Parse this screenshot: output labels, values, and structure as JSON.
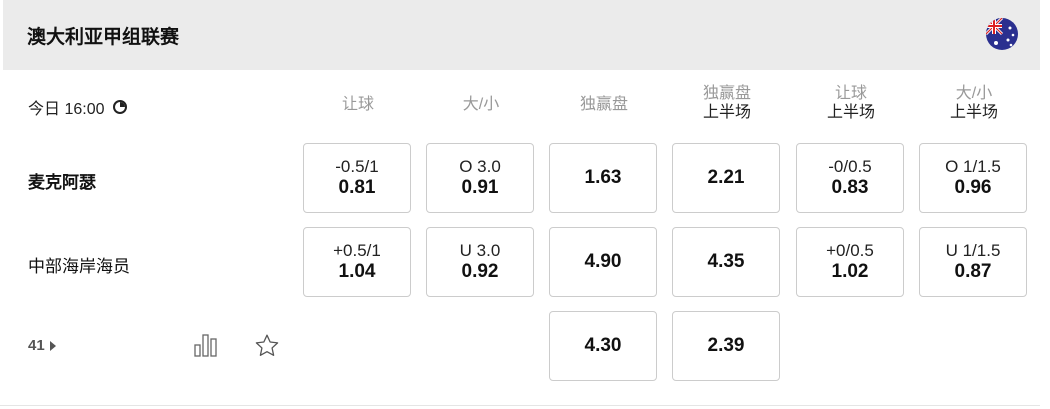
{
  "league": {
    "title": "澳大利亚甲组联赛",
    "flag_icon": "australia-flag"
  },
  "match": {
    "time": "今日 16:00",
    "home": "麦克阿瑟",
    "away": "中部海岸海员",
    "more_count": "41"
  },
  "columns": [
    {
      "l1": "让球",
      "l2": ""
    },
    {
      "l1": "大/小",
      "l2": ""
    },
    {
      "l1": "独赢盘",
      "l2": ""
    },
    {
      "l1": "独赢盘",
      "l2": "上半场"
    },
    {
      "l1": "让球",
      "l2": "上半场"
    },
    {
      "l1": "大/小",
      "l2": "上半场"
    }
  ],
  "rows": [
    [
      {
        "line": "-0.5/1",
        "odds": "0.81"
      },
      {
        "line": "O 3.0",
        "odds": "0.91"
      },
      {
        "line": "",
        "odds": "1.63"
      },
      {
        "line": "",
        "odds": "2.21"
      },
      {
        "line": "-0/0.5",
        "odds": "0.83"
      },
      {
        "line": "O 1/1.5",
        "odds": "0.96"
      }
    ],
    [
      {
        "line": "+0.5/1",
        "odds": "1.04"
      },
      {
        "line": "U 3.0",
        "odds": "0.92"
      },
      {
        "line": "",
        "odds": "4.90"
      },
      {
        "line": "",
        "odds": "4.35"
      },
      {
        "line": "+0/0.5",
        "odds": "1.02"
      },
      {
        "line": "U 1/1.5",
        "odds": "0.87"
      }
    ],
    [
      null,
      null,
      {
        "line": "",
        "odds": "4.30"
      },
      {
        "line": "",
        "odds": "2.39"
      },
      null,
      null
    ]
  ]
}
